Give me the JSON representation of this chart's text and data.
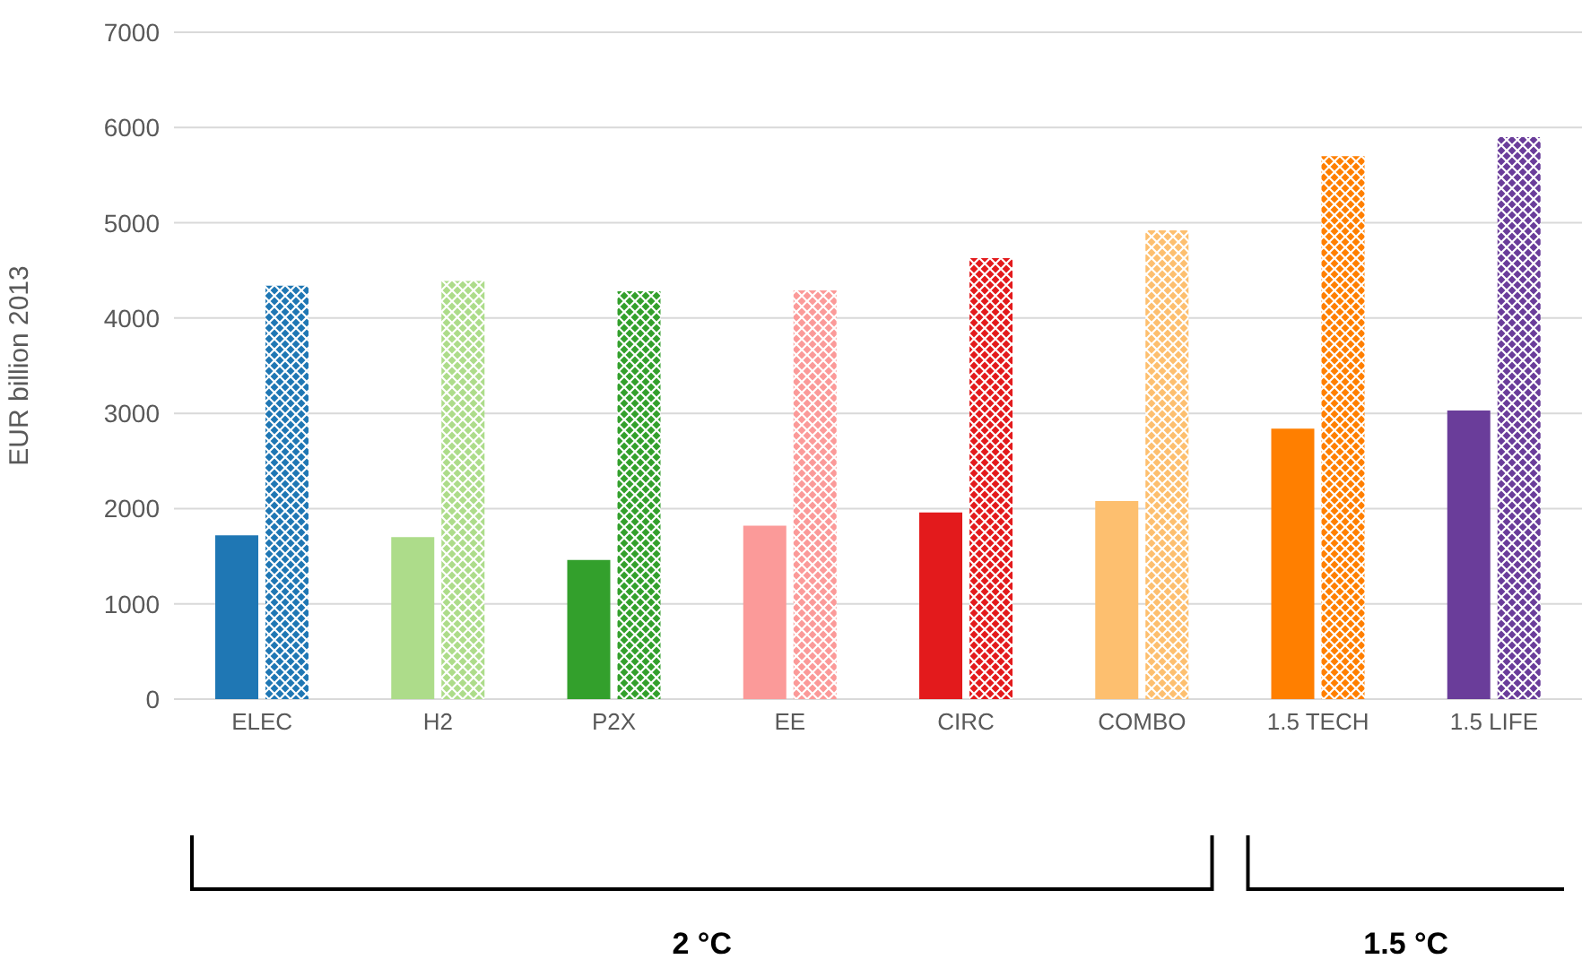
{
  "chart_data": {
    "type": "bar",
    "ylabel": "EUR billion 2013",
    "categories": [
      "ELEC",
      "H2",
      "P2X",
      "EE",
      "CIRC",
      "COMBO",
      "1.5 TECH",
      "1.5 LIFE"
    ],
    "series": [
      {
        "colors": [
          "#1f77b4",
          "#addc8a",
          "#33a02c",
          "#fb9a99",
          "#e31a1c",
          "#fdbf6f",
          "#ff7f00",
          "#6a3d9a"
        ],
        "values": [
          1720,
          1700,
          1460,
          1820,
          1960,
          2080,
          2840,
          3030
        ]
      },
      {
        "colors": [
          "#1f77b4",
          "#addc8a",
          "#33a02c",
          "#fb9a99",
          "#e31a1c",
          "#fdbf6f",
          "#ff7f00",
          "#6a3d9a"
        ],
        "values": [
          4340,
          4390,
          4280,
          4290,
          4630,
          4920,
          5700,
          5900
        ]
      }
    ],
    "ylim": [
      0,
      7000
    ],
    "yticks": [
      0,
      1000,
      2000,
      3000,
      4000,
      5000,
      6000,
      7000
    ],
    "grid": "y",
    "legend": false,
    "annotations": [
      "2 °C",
      "1.5 °C"
    ]
  }
}
